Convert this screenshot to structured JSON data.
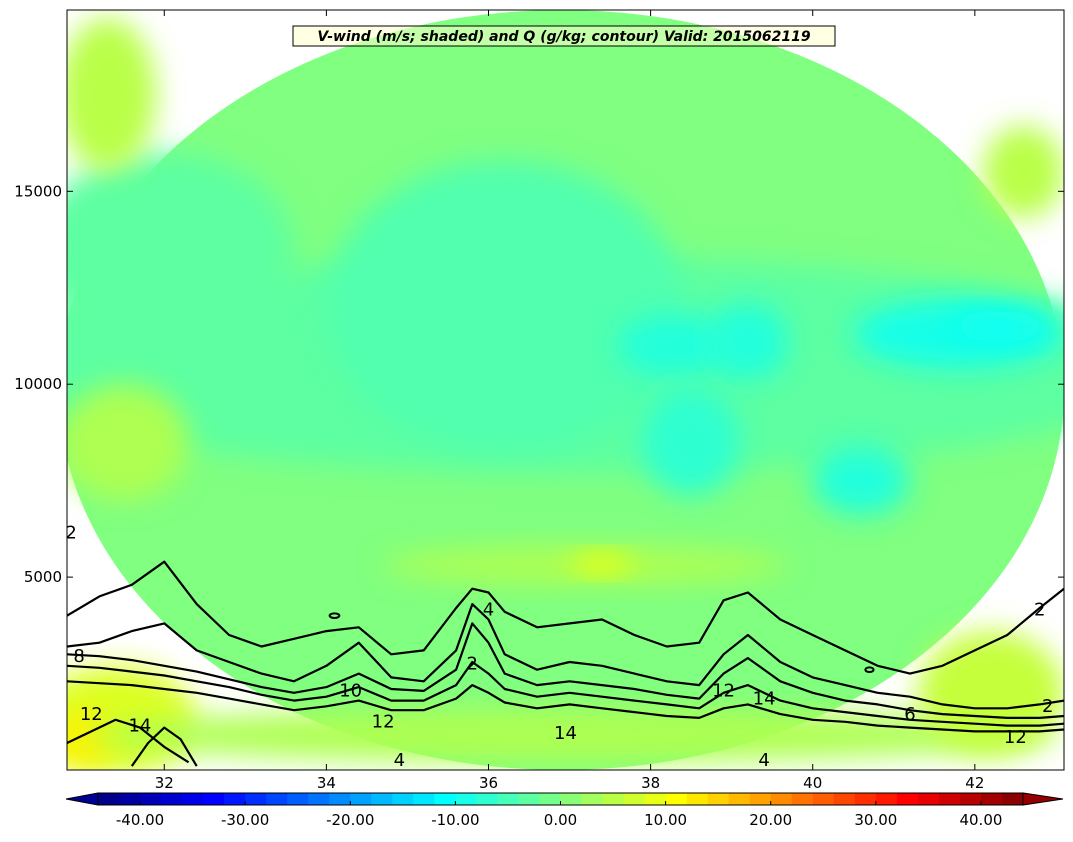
{
  "chart_data": {
    "type": "heatmap",
    "title": "V-wind (m/s; shaded) and Q (g/kg; contour) Valid: 2015062119",
    "xlabel": "",
    "ylabel": "",
    "xlim": [
      30.8,
      43.1
    ],
    "ylim": [
      0,
      19700
    ],
    "x_ticks": [
      32,
      34,
      36,
      38,
      40,
      42
    ],
    "x_tick_labels": [
      "32",
      "34",
      "36",
      "38",
      "40",
      "42"
    ],
    "y_ticks": [
      5000,
      10000,
      15000
    ],
    "y_tick_labels": [
      "5000",
      "10000",
      "15000"
    ],
    "colorbar": {
      "orientation": "horizontal",
      "min": -44,
      "max": 44,
      "step": 2,
      "extend": "both",
      "ticks": [
        -40,
        -30,
        -20,
        -10,
        0,
        10,
        20,
        30,
        40
      ],
      "tick_labels": [
        "-40.00",
        "-30.00",
        "-20.00",
        "-10.00",
        "0.00",
        "10.00",
        "20.00",
        "30.00",
        "40.00"
      ]
    },
    "shaded_regions": [
      {
        "name": "background",
        "x": 36.9,
        "y": 9850,
        "rx": 6.2,
        "ry": 9850,
        "value": 0
      },
      {
        "name": "upper-cool-band",
        "x": 37.0,
        "y": 10500,
        "rx": 7.5,
        "ry": 2800,
        "value": -3
      },
      {
        "name": "upper-left-cool",
        "x": 32.0,
        "y": 13500,
        "rx": 1.6,
        "ry": 2500,
        "value": -3
      },
      {
        "name": "mid-cool",
        "x": 36.2,
        "y": 12000,
        "rx": 2.2,
        "ry": 3800,
        "value": -4
      },
      {
        "name": "jet-core-a",
        "x": 38.3,
        "y": 11000,
        "rx": 0.7,
        "ry": 800,
        "value": -8
      },
      {
        "name": "jet-core-b",
        "x": 39.2,
        "y": 11100,
        "rx": 0.5,
        "ry": 1000,
        "value": -8
      },
      {
        "name": "jet-east",
        "x": 41.8,
        "y": 11300,
        "rx": 1.3,
        "ry": 900,
        "value": -9
      },
      {
        "name": "jet-east-core",
        "x": 42.3,
        "y": 11500,
        "rx": 0.6,
        "ry": 400,
        "value": -10
      },
      {
        "name": "mid-tongue",
        "x": 38.5,
        "y": 8500,
        "rx": 0.6,
        "ry": 1400,
        "value": -7
      },
      {
        "name": "mid-east",
        "x": 40.6,
        "y": 7500,
        "rx": 0.6,
        "ry": 900,
        "value": -8
      },
      {
        "name": "upper-left-warm",
        "x": 31.3,
        "y": 17500,
        "rx": 0.6,
        "ry": 2000,
        "value": 5
      },
      {
        "name": "top-right-warm",
        "x": 42.6,
        "y": 15500,
        "rx": 0.5,
        "ry": 1200,
        "value": 5
      },
      {
        "name": "mid-warm-left",
        "x": 31.5,
        "y": 8500,
        "rx": 0.8,
        "ry": 1500,
        "value": 4
      },
      {
        "name": "low-warm-band",
        "x": 37.2,
        "y": 5300,
        "rx": 2.5,
        "ry": 500,
        "value": 4
      },
      {
        "name": "low-warm-core",
        "x": 37.4,
        "y": 5350,
        "rx": 0.4,
        "ry": 250,
        "value": 10
      },
      {
        "name": "sfc-warm-left",
        "x": 31.4,
        "y": 1300,
        "rx": 1.0,
        "ry": 1400,
        "value": 8
      },
      {
        "name": "sfc-warm-core",
        "x": 31.0,
        "y": 800,
        "rx": 0.4,
        "ry": 700,
        "value": 12
      },
      {
        "name": "sfc-band",
        "x": 37.0,
        "y": 900,
        "rx": 6.0,
        "ry": 700,
        "value": 4
      },
      {
        "name": "sfc-right-warm",
        "x": 42.2,
        "y": 2000,
        "rx": 0.9,
        "ry": 1600,
        "value": 6
      }
    ],
    "contour_series": [
      {
        "name": "",
        "level": 2,
        "x": [
          30.8,
          31.2,
          31.6,
          32.0,
          32.4,
          32.8,
          33.2,
          33.6,
          34.0,
          34.4,
          34.8,
          35.2,
          35.6,
          35.8,
          36.0,
          36.2,
          36.6,
          37.0,
          37.4,
          37.8,
          38.2,
          38.6,
          38.9,
          39.2,
          39.6,
          40.0,
          40.4,
          40.8,
          41.2,
          41.6,
          42.0,
          42.4,
          42.8,
          43.1
        ],
        "y": [
          4000,
          4500,
          4800,
          5400,
          4300,
          3500,
          3200,
          3400,
          3600,
          3700,
          3000,
          3100,
          4200,
          4700,
          4600,
          4100,
          3700,
          3800,
          3900,
          3500,
          3200,
          3300,
          4400,
          4600,
          3900,
          3500,
          3100,
          2700,
          2500,
          2700,
          3100,
          3500,
          4200,
          4700
        ]
      },
      {
        "name": "",
        "level": 4,
        "x": [
          30.8,
          31.2,
          31.6,
          32.0,
          32.4,
          32.8,
          33.2,
          33.6,
          34.0,
          34.4,
          34.8,
          35.2,
          35.6,
          35.8,
          36.0,
          36.2,
          36.6,
          37.0,
          37.4,
          37.8,
          38.2,
          38.6,
          38.9,
          39.2,
          39.6,
          40.0,
          40.4,
          40.8,
          41.2,
          41.6,
          42.0,
          42.4,
          42.8,
          43.1
        ],
        "y": [
          3200,
          3300,
          3600,
          3800,
          3100,
          2800,
          2500,
          2300,
          2700,
          3300,
          2400,
          2300,
          3100,
          4300,
          3900,
          3000,
          2600,
          2800,
          2700,
          2500,
          2300,
          2200,
          3000,
          3500,
          2800,
          2400,
          2200,
          2000,
          1900,
          1700,
          1600,
          1600,
          1700,
          1800
        ]
      },
      {
        "name": "",
        "level": 6,
        "x": [
          30.8,
          31.2,
          31.6,
          32.0,
          32.4,
          32.8,
          33.2,
          33.6,
          34.0,
          34.4,
          34.8,
          35.2,
          35.6,
          35.8,
          36.0,
          36.2,
          36.6,
          37.0,
          37.4,
          37.8,
          38.2,
          38.6,
          38.9,
          39.2,
          39.6,
          40.0,
          40.4,
          40.8,
          41.2,
          41.6,
          42.0,
          42.4,
          42.8,
          43.1
        ],
        "y": [
          3000,
          2950,
          2850,
          2700,
          2550,
          2350,
          2150,
          2000,
          2150,
          2500,
          2100,
          2050,
          2600,
          3800,
          3300,
          2500,
          2200,
          2300,
          2200,
          2100,
          1950,
          1850,
          2500,
          2900,
          2300,
          2000,
          1800,
          1700,
          1550,
          1450,
          1400,
          1350,
          1350,
          1400
        ]
      },
      {
        "name": "",
        "level": 8,
        "x": [
          30.8,
          31.2,
          31.6,
          32.0,
          32.4,
          32.8,
          33.2,
          33.6,
          34.0,
          34.4,
          34.8,
          35.2,
          35.6,
          35.8,
          36.0,
          36.2,
          36.6,
          37.0,
          37.4,
          37.8,
          38.2,
          38.6,
          38.9,
          39.2,
          39.6,
          40.0,
          40.4,
          40.8,
          41.2,
          41.6,
          42.0,
          42.4,
          42.8,
          43.1
        ],
        "y": [
          2700,
          2650,
          2550,
          2450,
          2300,
          2150,
          1950,
          1800,
          1900,
          2150,
          1800,
          1800,
          2200,
          2800,
          2500,
          2100,
          1900,
          2000,
          1900,
          1800,
          1700,
          1600,
          2000,
          2200,
          1800,
          1600,
          1500,
          1400,
          1300,
          1250,
          1200,
          1150,
          1150,
          1200
        ]
      },
      {
        "name": "",
        "level": 10,
        "x": [
          30.8,
          31.2,
          31.6,
          32.0,
          32.4,
          32.8,
          33.2,
          33.6,
          34.0,
          34.4,
          34.8,
          35.2,
          35.6,
          35.8,
          36.0,
          36.2,
          36.6,
          37.0,
          37.4,
          37.8,
          38.2,
          38.6,
          38.9,
          39.2,
          39.6,
          40.0,
          40.4,
          40.8,
          41.2,
          41.6,
          42.0,
          42.4,
          42.8,
          43.1
        ],
        "y": [
          2300,
          2250,
          2200,
          2100,
          2000,
          1850,
          1700,
          1550,
          1650,
          1800,
          1550,
          1550,
          1850,
          2200,
          2000,
          1750,
          1600,
          1700,
          1600,
          1500,
          1400,
          1350,
          1600,
          1700,
          1450,
          1300,
          1250,
          1150,
          1100,
          1050,
          1000,
          1000,
          1000,
          1050
        ]
      },
      {
        "name": "",
        "level": 12,
        "x": [
          30.8,
          31.1,
          31.4,
          31.7,
          32.0,
          32.3
        ],
        "y": [
          700,
          1000,
          1300,
          1100,
          600,
          200
        ]
      },
      {
        "name": "",
        "level": 14,
        "x": [
          31.6,
          31.8,
          32.0,
          32.2,
          32.4
        ],
        "y": [
          100,
          700,
          1100,
          800,
          100
        ]
      }
    ],
    "contour_labels": [
      {
        "text": "2",
        "x": 30.85,
        "y": 6000
      },
      {
        "text": "8",
        "x": 30.95,
        "y": 2800
      },
      {
        "text": "12",
        "x": 31.1,
        "y": 1300
      },
      {
        "text": "14",
        "x": 31.7,
        "y": 1000
      },
      {
        "text": "10",
        "x": 34.3,
        "y": 1900
      },
      {
        "text": "12",
        "x": 34.7,
        "y": 1100
      },
      {
        "text": "4",
        "x": 34.9,
        "y": 100
      },
      {
        "text": "4",
        "x": 36.0,
        "y": 4000
      },
      {
        "text": "2",
        "x": 35.8,
        "y": 2600
      },
      {
        "text": "14",
        "x": 36.95,
        "y": 800
      },
      {
        "text": "12",
        "x": 38.9,
        "y": 1900
      },
      {
        "text": "14",
        "x": 39.4,
        "y": 1700
      },
      {
        "text": "4",
        "x": 39.4,
        "y": 100
      },
      {
        "text": "6",
        "x": 41.2,
        "y": 1300
      },
      {
        "text": "2",
        "x": 42.8,
        "y": 4000
      },
      {
        "text": "2",
        "x": 42.9,
        "y": 1500
      },
      {
        "text": "12",
        "x": 42.5,
        "y": 700
      }
    ],
    "closed_contours": [
      {
        "x": 34.1,
        "y": 4000,
        "rx": 0.06,
        "ry": 60
      },
      {
        "x": 40.7,
        "y": 2600,
        "rx": 0.05,
        "ry": 60
      }
    ]
  }
}
